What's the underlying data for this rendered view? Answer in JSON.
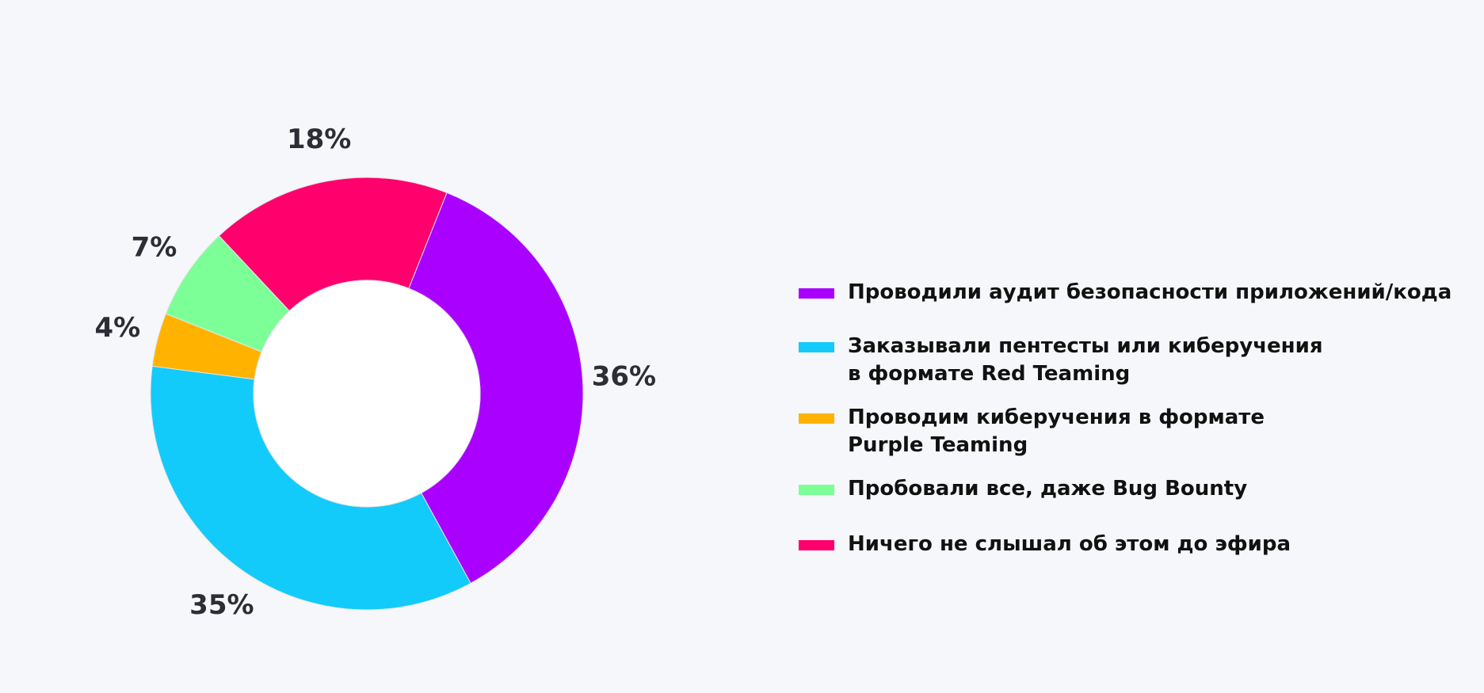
{
  "chart_data": {
    "type": "pie",
    "donut": true,
    "title": "",
    "legend_position": "right",
    "slices": [
      {
        "label": "Проводили аудит безопасности приложений/кода",
        "value": 36,
        "value_label": "36%",
        "color": "#aa00ff"
      },
      {
        "label": "Заказывали пентесты или киберучения\nв формате Red Teaming",
        "value": 35,
        "value_label": "35%",
        "color": "#12cbfa"
      },
      {
        "label": "Проводим киберучения в формате\nPurple Teaming",
        "value": 4,
        "value_label": "4%",
        "color": "#ffb300"
      },
      {
        "label": "Пробовали все, даже Bug Bounty",
        "value": 7,
        "value_label": "7%",
        "color": "#7dff98"
      },
      {
        "label": "Ничего не слышал об этом до эфира",
        "value": 18,
        "value_label": "18%",
        "color": "#ff006c"
      }
    ]
  }
}
